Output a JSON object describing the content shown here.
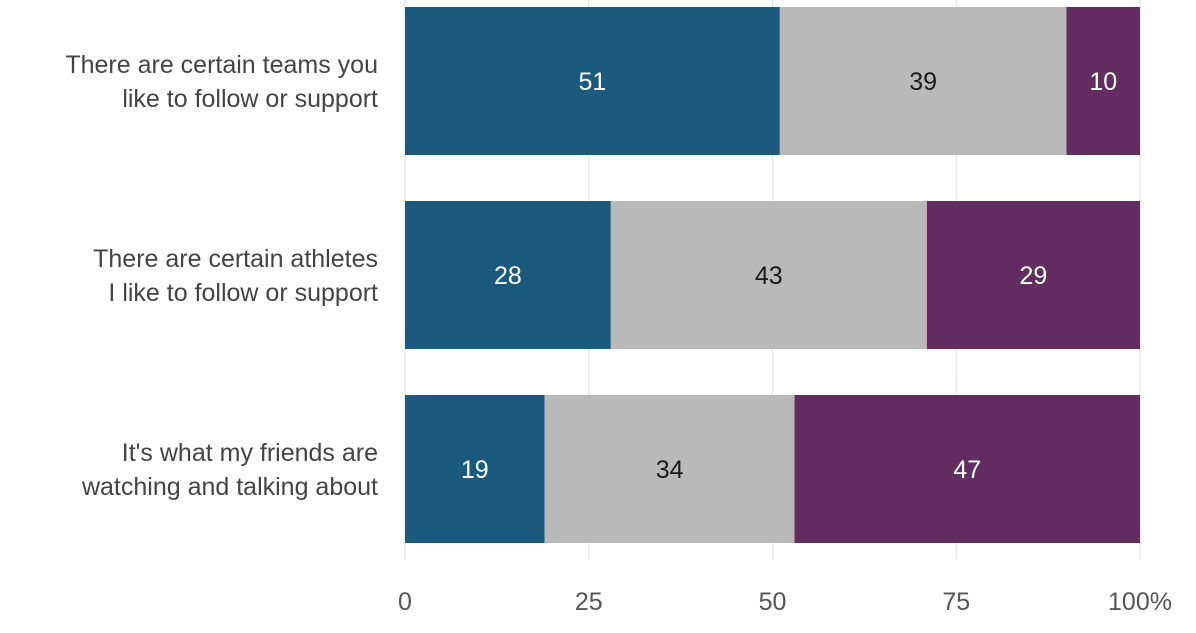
{
  "chart_data": {
    "type": "bar",
    "orientation": "horizontal",
    "stacked": true,
    "categories": [
      [
        "There are certain teams you",
        "like to follow or support"
      ],
      [
        "There are certain athletes",
        "I like to follow or support"
      ],
      [
        "It's what my friends are",
        "watching and talking about"
      ]
    ],
    "series": [
      {
        "values": [
          51,
          28,
          19
        ],
        "color": "#1b5a7d",
        "label_color": "#ffffff"
      },
      {
        "values": [
          39,
          43,
          34
        ],
        "color": "#b9b9b9",
        "label_color": "#1a1a1a"
      },
      {
        "values": [
          10,
          29,
          47
        ],
        "color": "#642d62",
        "label_color": "#ffffff"
      }
    ],
    "xlim": [
      0,
      100
    ],
    "x_ticks": [
      "0",
      "25",
      "50",
      "75",
      "100%"
    ],
    "x_tick_values": [
      0,
      25,
      50,
      75,
      100
    ],
    "grid": true,
    "legend": "none"
  }
}
